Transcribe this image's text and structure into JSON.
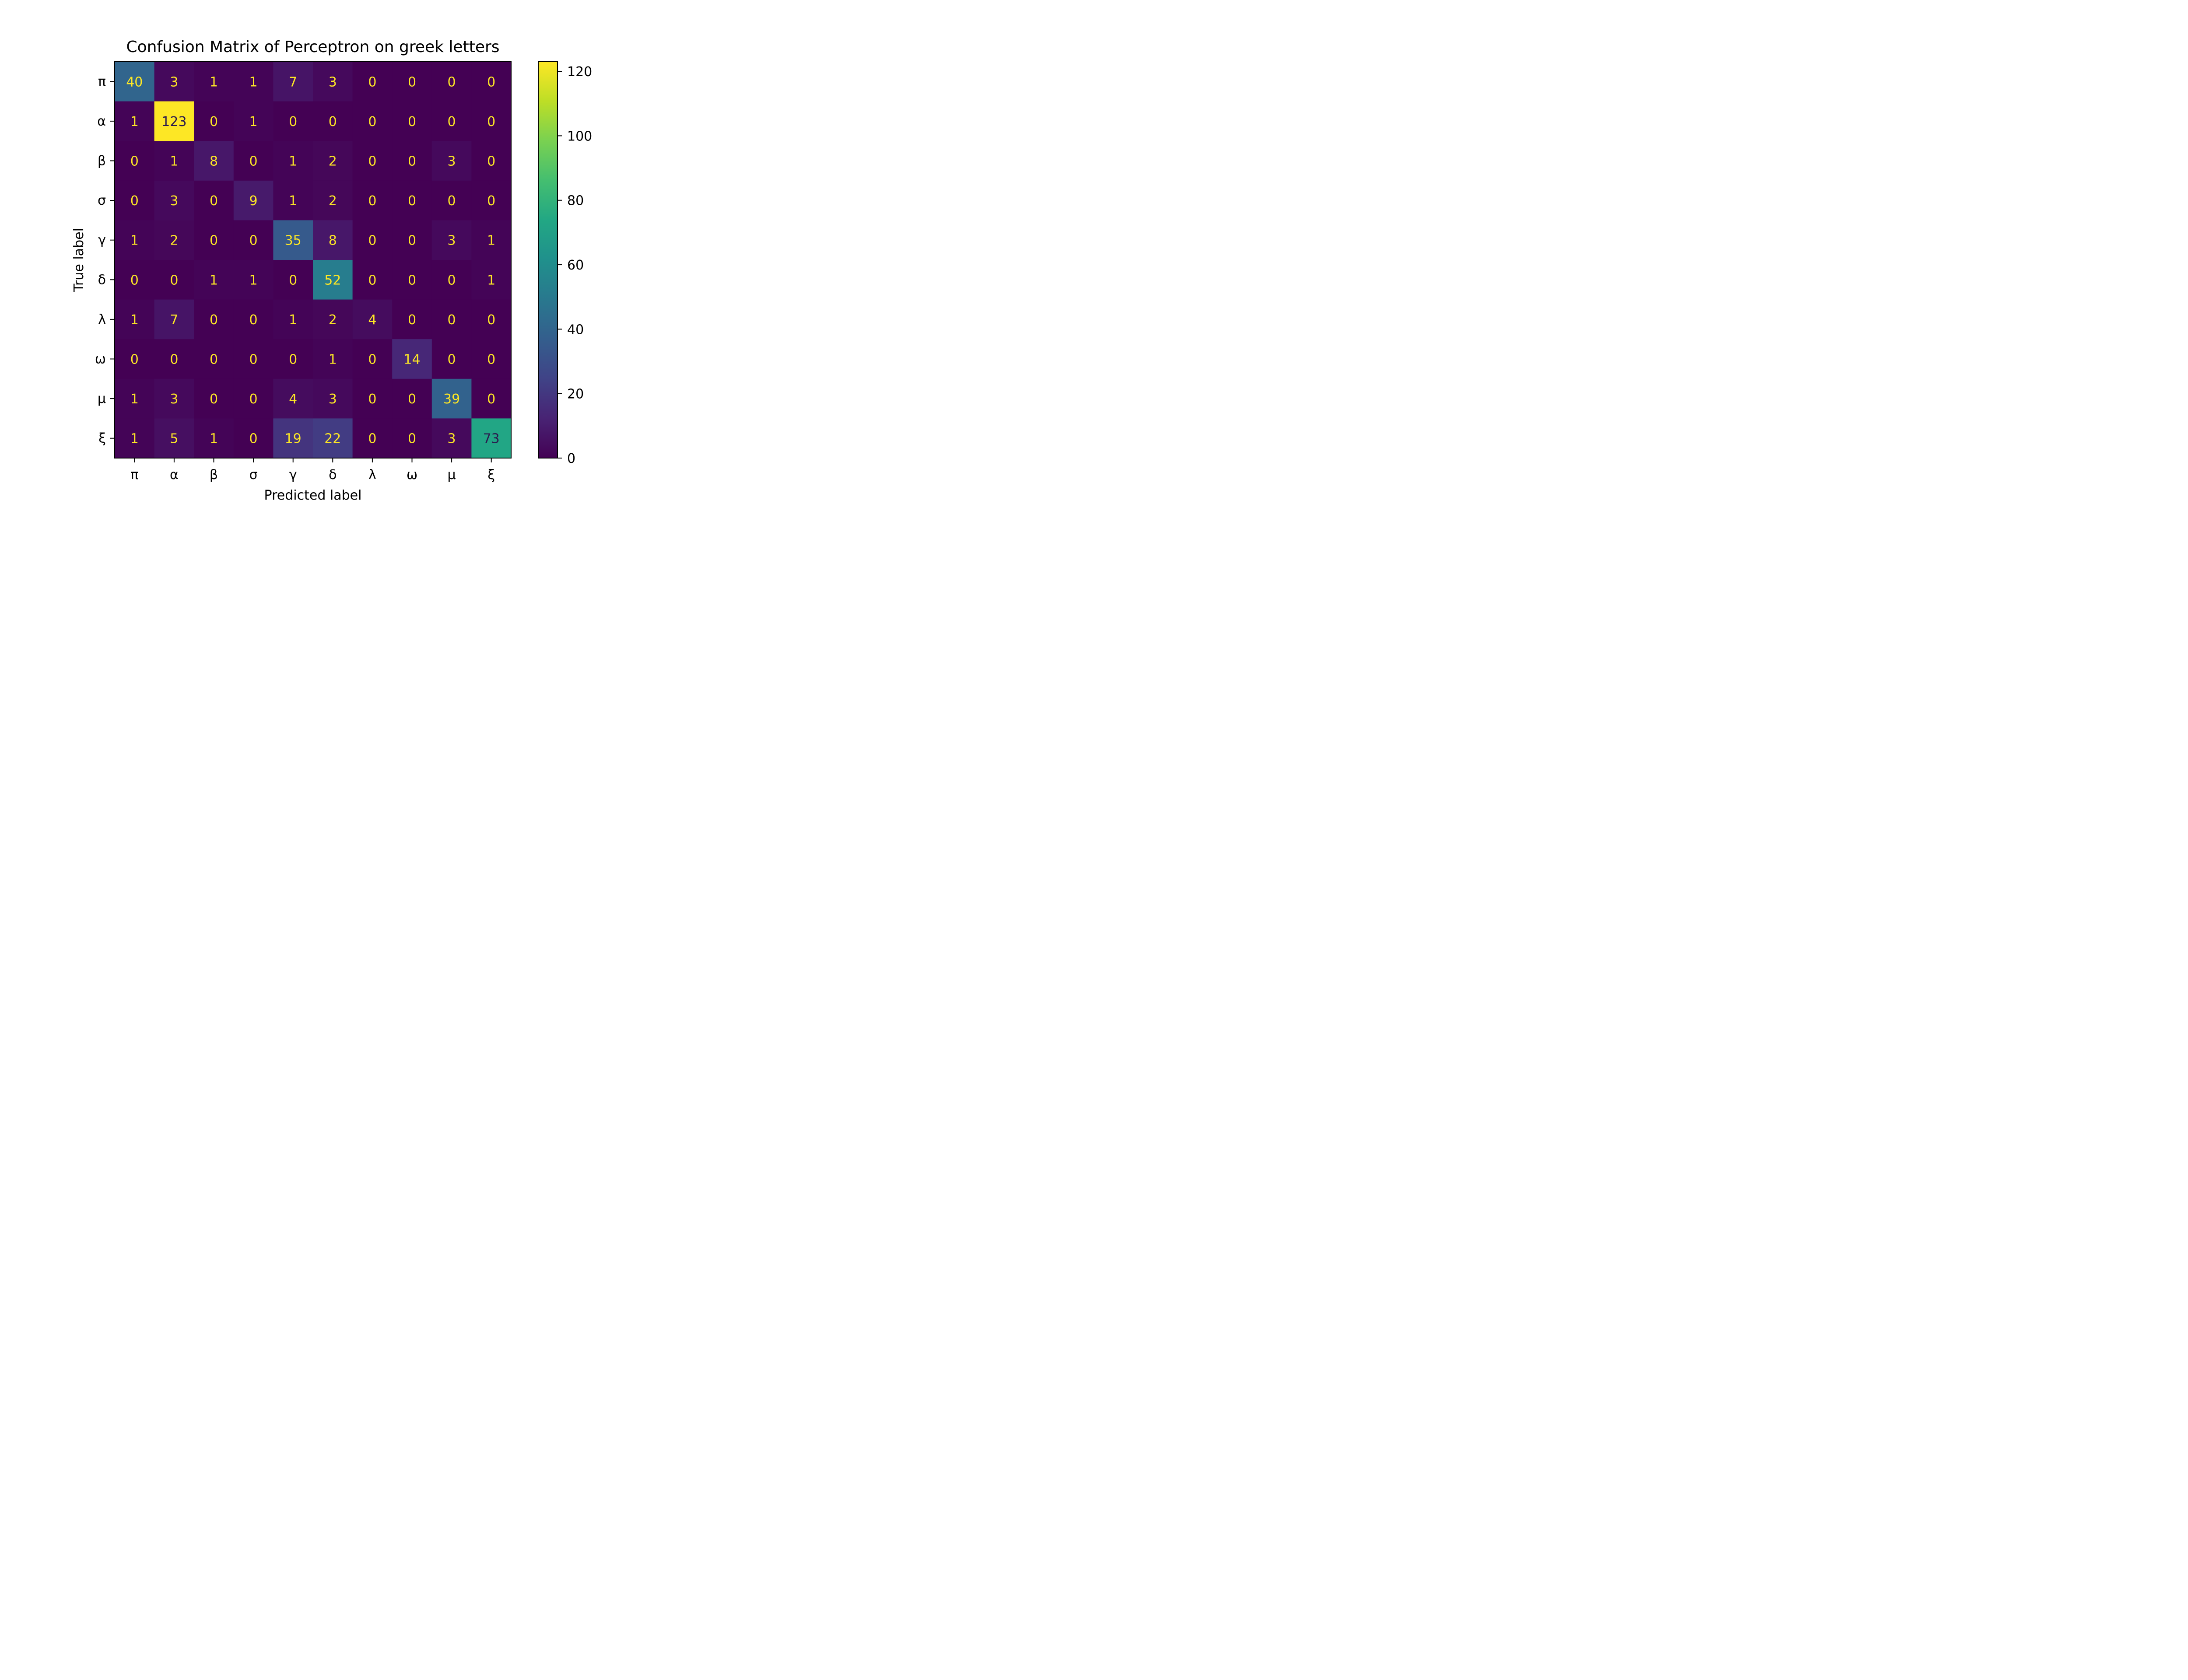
{
  "chart_data": {
    "type": "heatmap",
    "title": "Confusion Matrix of Perceptron on greek letters",
    "xlabel": "Predicted label",
    "ylabel": "True label",
    "x_categories": [
      "π",
      "α",
      "β",
      "σ",
      "γ",
      "δ",
      "λ",
      "ω",
      "μ",
      "ξ"
    ],
    "y_categories": [
      "π",
      "α",
      "β",
      "σ",
      "γ",
      "δ",
      "λ",
      "ω",
      "μ",
      "ξ"
    ],
    "matrix": [
      [
        40,
        3,
        1,
        1,
        7,
        3,
        0,
        0,
        0,
        0
      ],
      [
        1,
        123,
        0,
        1,
        0,
        0,
        0,
        0,
        0,
        0
      ],
      [
        0,
        1,
        8,
        0,
        1,
        2,
        0,
        0,
        3,
        0
      ],
      [
        0,
        3,
        0,
        9,
        1,
        2,
        0,
        0,
        0,
        0
      ],
      [
        1,
        2,
        0,
        0,
        35,
        8,
        0,
        0,
        3,
        1
      ],
      [
        0,
        0,
        1,
        1,
        0,
        52,
        0,
        0,
        0,
        1
      ],
      [
        1,
        7,
        0,
        0,
        1,
        2,
        4,
        0,
        0,
        0
      ],
      [
        0,
        0,
        0,
        0,
        0,
        1,
        0,
        14,
        0,
        0
      ],
      [
        1,
        3,
        0,
        0,
        4,
        3,
        0,
        0,
        39,
        0
      ],
      [
        1,
        5,
        1,
        0,
        19,
        22,
        0,
        0,
        3,
        73
      ]
    ],
    "colormap": "viridis",
    "vmin": 0,
    "vmax": 123,
    "colorbar_ticks": [
      0,
      20,
      40,
      60,
      80,
      100,
      120
    ],
    "grid": false
  }
}
